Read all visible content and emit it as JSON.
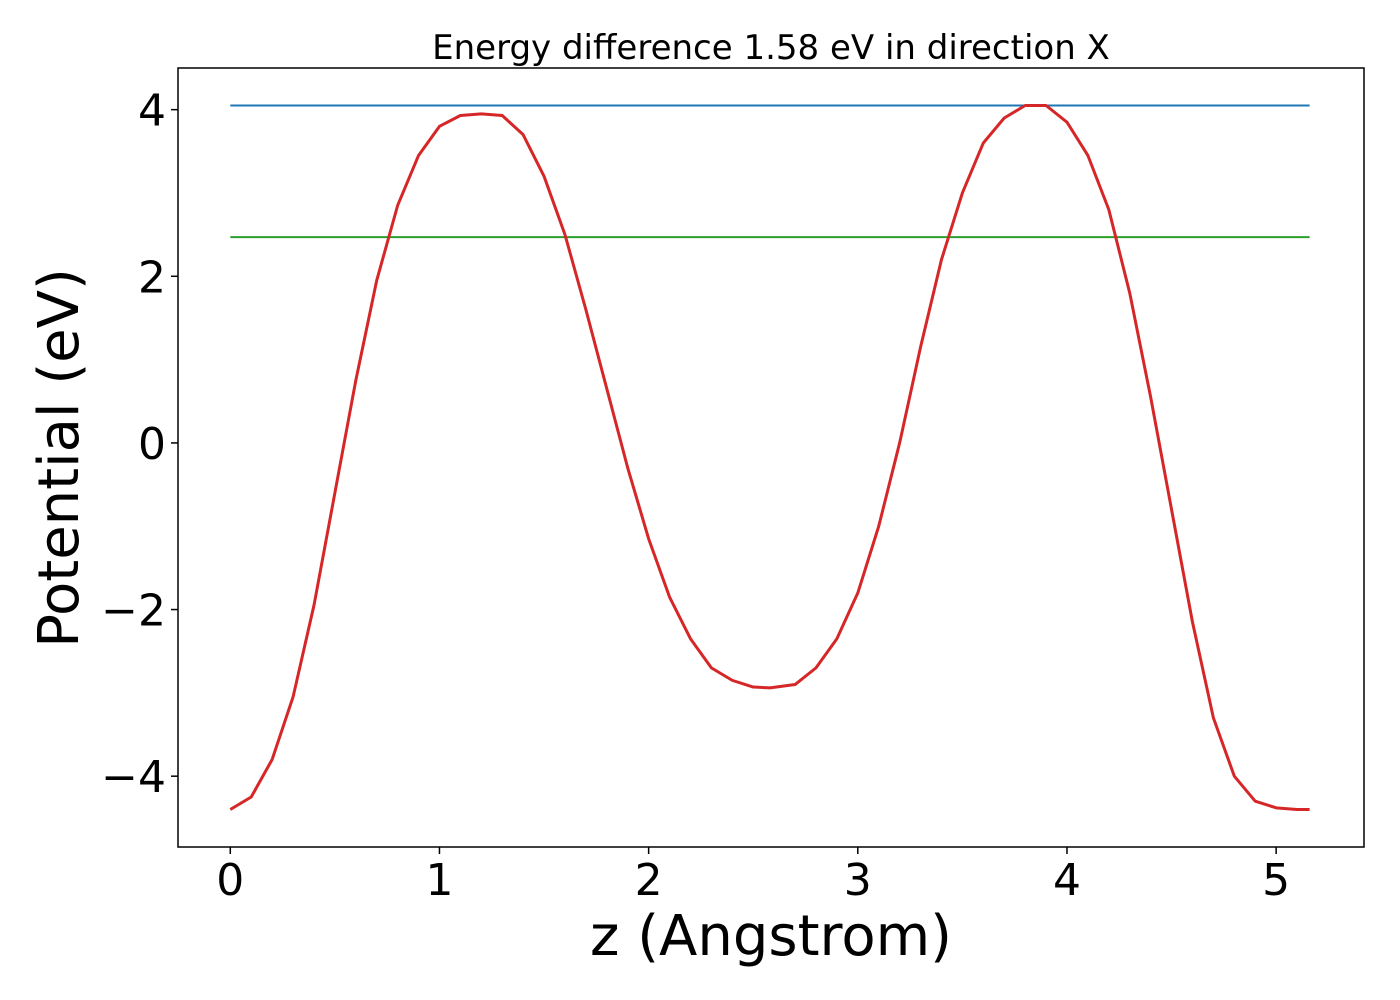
{
  "chart_data": {
    "type": "line",
    "title": "Energy difference 1.58 eV in direction X",
    "xlabel": "z (Angstrom)",
    "ylabel": "Potential (eV)",
    "xlim": [
      -0.25,
      5.42
    ],
    "ylim": [
      -4.85,
      4.5
    ],
    "grid": false,
    "legend": "none",
    "x_ticks": [
      0,
      1,
      2,
      3,
      4,
      5
    ],
    "x_tick_labels": [
      "0",
      "1",
      "2",
      "3",
      "4",
      "5"
    ],
    "y_ticks": [
      -4,
      -2,
      0,
      2,
      4
    ],
    "y_tick_labels": [
      "−4",
      "−2",
      "0",
      "2",
      "4"
    ],
    "series": [
      {
        "color": "#1f77b4",
        "x": [
          0,
          5.16
        ],
        "y": [
          4.05,
          4.05
        ]
      },
      {
        "color": "#2ca02c",
        "x": [
          0,
          5.16
        ],
        "y": [
          2.47,
          2.47
        ]
      },
      {
        "color": "#d62728",
        "x": [
          0,
          0.1,
          0.2,
          0.3,
          0.4,
          0.5,
          0.6,
          0.7,
          0.8,
          0.9,
          1.0,
          1.1,
          1.2,
          1.3,
          1.4,
          1.5,
          1.6,
          1.7,
          1.8,
          1.9,
          2.0,
          2.1,
          2.2,
          2.3,
          2.4,
          2.5,
          2.58,
          2.7,
          2.8,
          2.9,
          3.0,
          3.1,
          3.2,
          3.3,
          3.4,
          3.5,
          3.6,
          3.7,
          3.8,
          3.9,
          4.0,
          4.1,
          4.2,
          4.3,
          4.4,
          4.5,
          4.6,
          4.7,
          4.8,
          4.9,
          5.0,
          5.1,
          5.16
        ],
        "y": [
          -4.4,
          -4.25,
          -3.8,
          -3.05,
          -1.95,
          -0.6,
          0.75,
          1.95,
          2.85,
          3.45,
          3.8,
          3.93,
          3.95,
          3.93,
          3.7,
          3.2,
          2.5,
          1.6,
          0.65,
          -0.3,
          -1.15,
          -1.85,
          -2.35,
          -2.7,
          -2.85,
          -2.93,
          -2.94,
          -2.9,
          -2.7,
          -2.35,
          -1.8,
          -1.0,
          0.0,
          1.15,
          2.2,
          3.0,
          3.6,
          3.9,
          4.05,
          4.05,
          3.85,
          3.45,
          2.8,
          1.8,
          0.55,
          -0.8,
          -2.15,
          -3.3,
          -4.0,
          -4.3,
          -4.38,
          -4.4,
          -4.4
        ]
      }
    ]
  }
}
